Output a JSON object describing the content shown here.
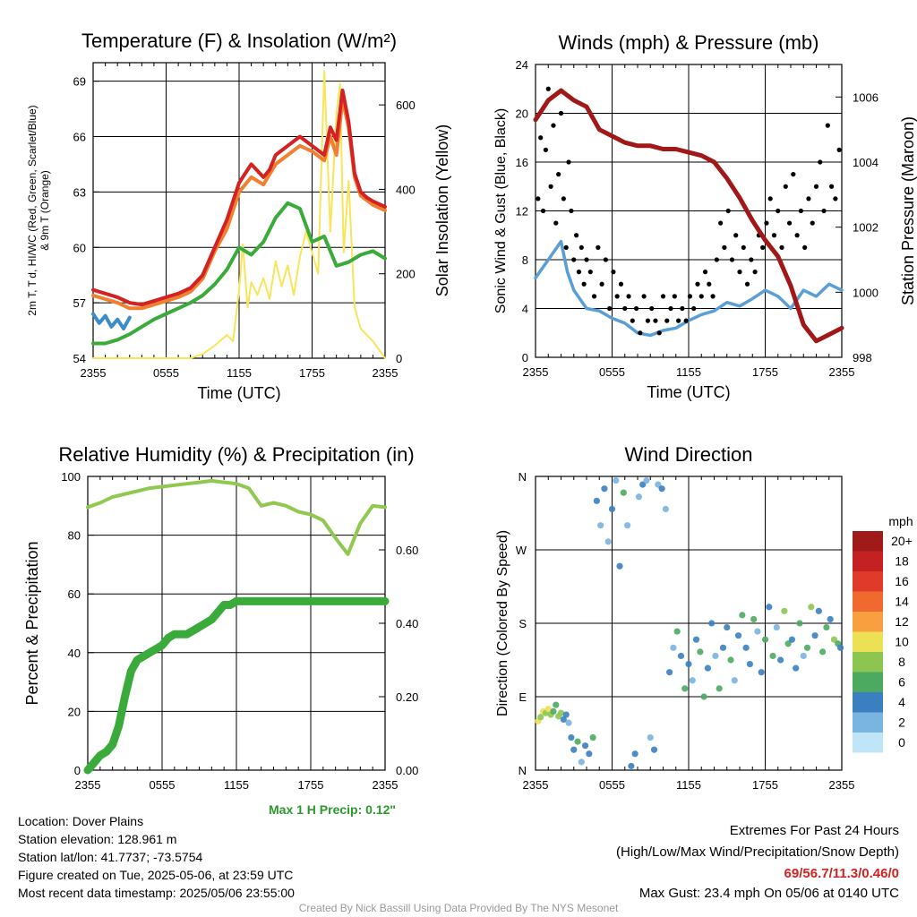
{
  "figure": {
    "location": "Location: Dover Plains",
    "elevation": "Station elevation: 128.961 m",
    "latlon": "Station lat/lon: 41.7737; -73.5754",
    "created": "Figure created on Tue, 2025-05-06, at 23:59 UTC",
    "recent": "Most recent data timestamp: 2025/05/06 23:55:00",
    "extremes_title": "Extremes For Past 24 Hours",
    "extremes_legend": "(High/Low/Max Wind/Precipitation/Snow Depth)",
    "extremes_values": "69/56.7/11.3/0.46/0",
    "max_gust": "Max Gust: 23.4 mph On 05/06 at 0140 UTC",
    "credit": "Created By Nick Bassill Using Data Provided By The NYS Mesonet",
    "max_precip": "Max 1 H Precip: 0.12\"",
    "colors": {
      "temp": "#d42222",
      "dew": "#3aab3a",
      "t9": "#f08030",
      "wc": "#3a8dc8",
      "solar": "#f7e55a",
      "wind": "#5a9ed6",
      "gust": "#000000",
      "pressure": "#a01818",
      "rh": "#90c850",
      "precip": "#3aab3a",
      "extremes": "#d42222",
      "maxprecip": "#2a9a2a"
    }
  },
  "chart_data": [
    {
      "type": "line",
      "title": "Temperature (F) & Insolation (W/m²)",
      "xlabel": "Time (UTC)",
      "ylabel": "2m T, Td, HI/WC (Red, Green, Scarlet/Blue) & 9m T (Orange)",
      "y2label": "Solar Insolation (Yellow)",
      "xticks": [
        "2355",
        "0555",
        "1155",
        "1755",
        "2355"
      ],
      "ylim": [
        54,
        70
      ],
      "yticks": [
        54,
        57,
        60,
        63,
        66,
        69
      ],
      "y2lim": [
        0,
        700
      ],
      "y2ticks": [
        0,
        200,
        400,
        600
      ],
      "series": [
        {
          "key": "temp",
          "x": [
            0,
            1,
            2,
            3,
            4,
            5,
            6,
            7,
            8,
            9,
            10,
            11,
            12,
            13,
            14,
            14.5,
            15,
            16,
            17,
            18,
            19,
            19.5,
            20,
            20.5,
            21,
            21.5,
            22,
            22.5,
            23,
            24
          ],
          "values": [
            57.7,
            57.5,
            57.3,
            57.0,
            56.9,
            57.1,
            57.3,
            57.5,
            57.8,
            58.5,
            60.0,
            61.5,
            63.5,
            64.5,
            63.8,
            64.2,
            65.0,
            65.5,
            66.0,
            65.5,
            65.0,
            66.5,
            65.8,
            68.5,
            66.8,
            64.0,
            63.0,
            62.7,
            62.5,
            62.2
          ]
        },
        {
          "key": "t9",
          "x": [
            0,
            1,
            2,
            3,
            4,
            5,
            6,
            7,
            8,
            9,
            10,
            11,
            12,
            13,
            14,
            15,
            16,
            17,
            18,
            19,
            19.5,
            20,
            20.5,
            21,
            21.5,
            22,
            23,
            24
          ],
          "values": [
            57.4,
            57.2,
            57.0,
            56.7,
            56.7,
            56.9,
            57.1,
            57.3,
            57.6,
            58.3,
            59.8,
            61.0,
            63.0,
            63.8,
            63.4,
            64.5,
            65.0,
            65.5,
            65.2,
            64.7,
            66.0,
            65.0,
            68.0,
            66.5,
            63.8,
            62.8,
            62.3,
            62.0
          ]
        },
        {
          "key": "dew",
          "x": [
            0,
            1,
            2,
            3,
            4,
            5,
            6,
            7,
            8,
            9,
            10,
            11,
            12,
            13,
            14,
            15,
            16,
            17,
            18,
            19,
            20,
            21,
            22,
            23,
            24
          ],
          "values": [
            54.8,
            54.8,
            55.0,
            55.3,
            55.7,
            56.1,
            56.4,
            56.7,
            57.0,
            57.4,
            58.0,
            58.8,
            60.0,
            59.6,
            60.3,
            61.6,
            62.4,
            62.1,
            60.3,
            60.6,
            59.0,
            59.2,
            59.6,
            59.8,
            59.4
          ]
        },
        {
          "key": "wc",
          "x": [
            0,
            0.5,
            1,
            1.5,
            2,
            2.5,
            3
          ],
          "values": [
            56.4,
            55.9,
            56.3,
            55.7,
            56.1,
            55.6,
            56.2
          ]
        },
        {
          "key": "solar",
          "axis": "y2",
          "x": [
            0,
            1,
            2,
            3,
            4,
            5,
            6,
            7,
            8,
            9,
            10,
            11,
            11.5,
            12,
            12.3,
            12.7,
            13,
            13.5,
            14,
            14.5,
            15,
            15.5,
            16,
            16.5,
            17,
            17.5,
            18,
            18.5,
            19,
            19.5,
            20,
            20.3,
            20.6,
            21,
            21.5,
            22,
            23,
            24
          ],
          "values": [
            0,
            0,
            0,
            0,
            0,
            0,
            0,
            0,
            0,
            10,
            30,
            55,
            40,
            160,
            270,
            120,
            180,
            150,
            190,
            140,
            230,
            170,
            220,
            150,
            240,
            300,
            250,
            200,
            680,
            300,
            580,
            650,
            250,
            420,
            120,
            70,
            40,
            0
          ]
        }
      ]
    },
    {
      "type": "line",
      "title": "Winds (mph) & Pressure (mb)",
      "xlabel": "Time (UTC)",
      "ylabel": "Sonic Wind & Gust (Blue, Black)",
      "y2label": "Station Pressure (Maroon)",
      "xticks": [
        "2355",
        "0555",
        "1155",
        "1755",
        "2355"
      ],
      "ylim": [
        0,
        24
      ],
      "yticks": [
        0,
        4,
        8,
        12,
        16,
        20,
        24
      ],
      "y2lim": [
        998,
        1007
      ],
      "y2ticks": [
        998,
        1000,
        1002,
        1004,
        1006
      ],
      "series": [
        {
          "key": "wind",
          "x": [
            0,
            1,
            2,
            2.5,
            3,
            4,
            5,
            6,
            7,
            8,
            9,
            10,
            11,
            12,
            13,
            14,
            15,
            16,
            17,
            18,
            19,
            20,
            21,
            22,
            23,
            24
          ],
          "values": [
            6.5,
            8.0,
            9.5,
            7.0,
            5.5,
            4.0,
            3.8,
            3.2,
            2.8,
            2.0,
            1.8,
            2.2,
            2.4,
            3.0,
            3.5,
            3.8,
            4.5,
            4.2,
            4.8,
            5.5,
            5.0,
            4.0,
            5.5,
            5.0,
            6.0,
            5.5
          ]
        },
        {
          "key": "pressure",
          "axis": "y2",
          "x": [
            0,
            1,
            2,
            3,
            4,
            5,
            6,
            7,
            8,
            9,
            10,
            11,
            12,
            13,
            14,
            15,
            16,
            17,
            18,
            19,
            20,
            21,
            22,
            23,
            24
          ],
          "values": [
            1005.3,
            1005.9,
            1006.2,
            1005.9,
            1005.7,
            1005.0,
            1004.8,
            1004.6,
            1004.5,
            1004.5,
            1004.4,
            1004.4,
            1004.3,
            1004.2,
            1004.0,
            1003.5,
            1002.9,
            1002.2,
            1001.6,
            1001.1,
            1000.2,
            999.0,
            998.5,
            998.7,
            998.9
          ]
        }
      ],
      "gust_points": {
        "x": [
          0.2,
          0.4,
          0.6,
          0.8,
          1.0,
          1.2,
          1.4,
          1.6,
          1.8,
          2.0,
          2.2,
          2.4,
          2.6,
          2.8,
          3.0,
          3.2,
          3.4,
          3.6,
          3.8,
          4.0,
          4.3,
          4.6,
          4.9,
          5.2,
          5.5,
          5.8,
          6.1,
          6.4,
          6.7,
          7.0,
          7.3,
          7.6,
          7.9,
          8.2,
          8.5,
          8.8,
          9.1,
          9.4,
          9.7,
          10.0,
          10.3,
          10.6,
          10.9,
          11.2,
          11.5,
          11.8,
          12.1,
          12.4,
          12.7,
          13.0,
          13.3,
          13.6,
          13.9,
          14.2,
          14.5,
          14.8,
          15.1,
          15.4,
          15.7,
          16.0,
          16.3,
          16.6,
          16.9,
          17.2,
          17.5,
          17.8,
          18.1,
          18.4,
          18.7,
          19.0,
          19.3,
          19.6,
          19.9,
          20.2,
          20.5,
          20.8,
          21.1,
          21.4,
          21.7,
          22.0,
          22.3,
          22.6,
          22.9,
          23.2,
          23.5,
          23.8
        ],
        "values": [
          13,
          18,
          12,
          17,
          22,
          14,
          19,
          11,
          15,
          20,
          13,
          9,
          16,
          12,
          8,
          10,
          7,
          9,
          6,
          8,
          7,
          5,
          9,
          6,
          8,
          4,
          7,
          5,
          6,
          4,
          5,
          3,
          4,
          2,
          5,
          3,
          4,
          3,
          2,
          5,
          3,
          4,
          5,
          3,
          4,
          3,
          5,
          4,
          6,
          5,
          7,
          6,
          5,
          8,
          11,
          9,
          12,
          8,
          10,
          7,
          9,
          6,
          8,
          7,
          10,
          9,
          11,
          13,
          10,
          12,
          9,
          14,
          11,
          15,
          10,
          12,
          9,
          13,
          11,
          14,
          16,
          12,
          19,
          14,
          13,
          17
        ]
      }
    },
    {
      "type": "line",
      "title": "Relative Humidity (%) & Precipitation (in)",
      "xlabel": "",
      "ylabel": "Percent & Precipitation",
      "xticks": [
        "2355",
        "0555",
        "1155",
        "1755",
        "2355"
      ],
      "ylim": [
        0,
        100
      ],
      "yticks": [
        0,
        20,
        40,
        60,
        80,
        100
      ],
      "y2lim": [
        0,
        0.8
      ],
      "y2ticks": [
        0.0,
        0.2,
        0.4,
        0.6
      ],
      "y2ticklabels": [
        "0.00",
        "0.20",
        "0.40",
        "0.60"
      ],
      "series": [
        {
          "key": "rh",
          "x": [
            0,
            1,
            2,
            3,
            4,
            5,
            6,
            7,
            8,
            9,
            10,
            11,
            12,
            13,
            14,
            15,
            16,
            17,
            18,
            19,
            20,
            21,
            22,
            23,
            24
          ],
          "values": [
            89.5,
            91,
            93,
            94,
            95,
            96,
            96.5,
            97,
            97.5,
            98,
            98.5,
            98,
            97.5,
            96,
            90,
            91,
            90,
            88,
            87,
            85,
            79,
            73.5,
            84,
            90,
            89.5
          ]
        },
        {
          "key": "precip",
          "axis": "y2",
          "x": [
            0,
            0.5,
            1,
            1.5,
            2,
            2.5,
            3,
            3.5,
            4,
            4.5,
            5,
            5.5,
            6,
            6.5,
            7,
            7.5,
            8,
            8.5,
            9,
            9.5,
            10,
            10.5,
            11,
            11.5,
            12,
            12.5,
            13,
            14,
            15,
            16,
            17,
            18,
            19,
            20,
            21,
            22,
            23,
            24
          ],
          "values": [
            0,
            0.02,
            0.04,
            0.05,
            0.07,
            0.12,
            0.2,
            0.27,
            0.3,
            0.31,
            0.32,
            0.33,
            0.34,
            0.36,
            0.37,
            0.37,
            0.37,
            0.38,
            0.39,
            0.4,
            0.41,
            0.43,
            0.45,
            0.45,
            0.46,
            0.46,
            0.46,
            0.46,
            0.46,
            0.46,
            0.46,
            0.46,
            0.46,
            0.46,
            0.46,
            0.46,
            0.46,
            0.46
          ]
        }
      ]
    },
    {
      "type": "scatter",
      "title": "Wind Direction",
      "ylabel": "Direction (Colored By Speed)",
      "xticks": [
        "2355",
        "0555",
        "1155",
        "1755",
        "2355"
      ],
      "yticklabels": [
        "N",
        "E",
        "S",
        "W",
        "N"
      ],
      "ylim": [
        0,
        360
      ],
      "colorbar": {
        "title": "mph",
        "labels": [
          "20+",
          "18",
          "16",
          "14",
          "12",
          "10",
          "8",
          "6",
          "4",
          "2",
          "0"
        ],
        "colors": [
          "#a01a1a",
          "#c42222",
          "#e03a2a",
          "#f06a30",
          "#f8a040",
          "#ece055",
          "#8cc650",
          "#4caa60",
          "#3a80c0",
          "#7ab4e0",
          "#c0e4f8"
        ]
      },
      "points": {
        "x": [
          0.2,
          0.4,
          0.6,
          0.8,
          1.0,
          1.2,
          1.4,
          1.6,
          1.8,
          2.0,
          2.2,
          2.4,
          2.6,
          2.8,
          3.0,
          3.3,
          3.6,
          3.9,
          4.2,
          4.5,
          4.8,
          5.1,
          5.4,
          5.7,
          6.0,
          6.3,
          6.6,
          6.9,
          7.2,
          7.5,
          7.8,
          8.1,
          8.4,
          8.7,
          9.0,
          9.3,
          9.6,
          9.9,
          10.2,
          10.5,
          10.8,
          11.1,
          11.4,
          11.7,
          12.0,
          12.3,
          12.6,
          12.9,
          13.2,
          13.5,
          13.8,
          14.1,
          14.4,
          14.7,
          15.0,
          15.3,
          15.6,
          15.9,
          16.2,
          16.5,
          16.8,
          17.1,
          17.4,
          17.7,
          18.0,
          18.3,
          18.6,
          18.9,
          19.2,
          19.5,
          19.8,
          20.1,
          20.4,
          20.7,
          21.0,
          21.3,
          21.6,
          21.9,
          22.2,
          22.5,
          22.8,
          23.1,
          23.4,
          23.7,
          23.9
        ],
        "dir": [
          60,
          65,
          72,
          70,
          75,
          68,
          72,
          80,
          66,
          70,
          62,
          68,
          58,
          40,
          25,
          35,
          10,
          30,
          20,
          40,
          330,
          300,
          345,
          280,
          320,
          355,
          250,
          340,
          300,
          5,
          20,
          335,
          350,
          355,
          40,
          25,
          350,
          345,
          320,
          120,
          150,
          170,
          140,
          100,
          130,
          110,
          160,
          145,
          90,
          125,
          180,
          140,
          100,
          150,
          175,
          135,
          110,
          165,
          190,
          150,
          130,
          185,
          170,
          120,
          160,
          200,
          140,
          175,
          135,
          195,
          155,
          160,
          125,
          180,
          140,
          150,
          200,
          165,
          195,
          145,
          175,
          185,
          160,
          155,
          150
        ],
        "speed": [
          9,
          8,
          10,
          7,
          9,
          8,
          6,
          5,
          8,
          7,
          3,
          4,
          2,
          4,
          3,
          5,
          2,
          4,
          3,
          5,
          4,
          2,
          3,
          1,
          4,
          2,
          3,
          5,
          2,
          3,
          4,
          2,
          3,
          1,
          2,
          4,
          2,
          3,
          1,
          3,
          2,
          5,
          4,
          6,
          3,
          2,
          4,
          5,
          6,
          3,
          4,
          2,
          5,
          3,
          4,
          6,
          2,
          3,
          5,
          4,
          3,
          6,
          2,
          4,
          5,
          3,
          6,
          2,
          4,
          7,
          5,
          3,
          4,
          6,
          2,
          5,
          7,
          4,
          3,
          5,
          6,
          4,
          7,
          5,
          3
        ]
      }
    }
  ]
}
